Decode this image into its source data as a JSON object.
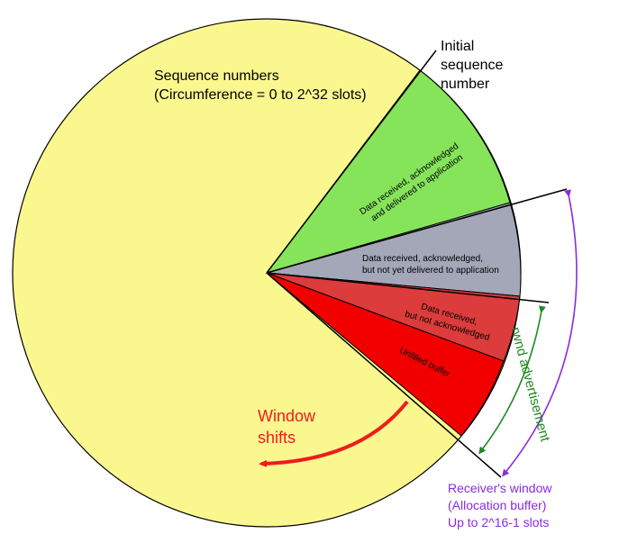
{
  "circle_title": {
    "line1": "Sequence numbers",
    "line2": "(Circumference = 0 to 2^32 slots)"
  },
  "isn_label": {
    "line1": "Initial",
    "line2": "sequence",
    "line3": "number"
  },
  "segments": {
    "delivered": {
      "line1": "Data received, acknowledged",
      "line2": "and delivered to application",
      "color": "#86e45a"
    },
    "not_delivered": {
      "line1": "Data received, acknowledged,",
      "line2": "but not yet delivered to application",
      "color": "#a4a7b8"
    },
    "not_acked": {
      "line1": "Data received,",
      "line2": "but not acknowledged",
      "color": "#dc3c3c"
    },
    "unfilled": {
      "label": "Unfilled buffer",
      "color": "#f20000"
    }
  },
  "circle_fill_color": "#fbf78f",
  "window_shift": {
    "line1": "Window",
    "line2": "shifts",
    "color": "#ee1c1c"
  },
  "rwnd": {
    "label": "rwnd advertisement",
    "color": "#1f8a1f"
  },
  "receiver_window": {
    "line1": "Receiver's window",
    "line2": "(Allocation buffer)",
    "line3": "Up to 2^16-1 slots",
    "color": "#8a2be2"
  }
}
